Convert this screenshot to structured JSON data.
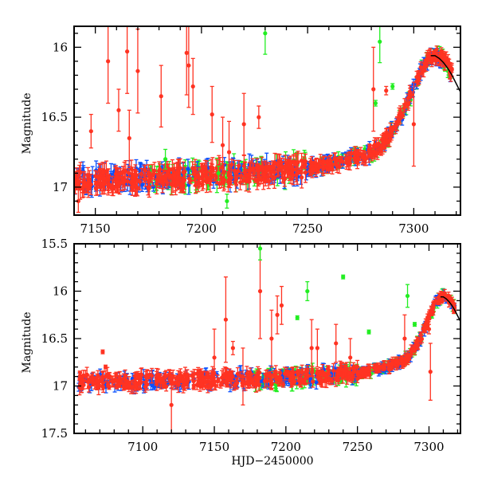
{
  "chart_data": [
    {
      "type": "scatter",
      "panel": "top",
      "title": "",
      "xlabel": "",
      "ylabel": "Magnitude",
      "xlim": [
        7140,
        7322
      ],
      "ylim": [
        17.2,
        15.85
      ],
      "y_inverted": true,
      "grid": false,
      "legend": "none",
      "x_ticks": [
        7150,
        7200,
        7250,
        7300
      ],
      "x_tick_labels": [
        "7150",
        "7200",
        "7250",
        "7300"
      ],
      "y_ticks": [
        16,
        16.5,
        17
      ],
      "y_tick_labels": [
        "16",
        "16.5",
        "17"
      ],
      "series": [
        {
          "name": "red",
          "color": "#ff3322"
        },
        {
          "name": "blue",
          "color": "#0a50ff"
        },
        {
          "name": "green",
          "color": "#22ee22"
        },
        {
          "name": "model-curve",
          "color": "#000000"
        }
      ],
      "trend": {
        "x": [
          7140,
          7160,
          7180,
          7200,
          7220,
          7240,
          7250,
          7260,
          7270,
          7280,
          7285,
          7290,
          7295,
          7300,
          7304,
          7307,
          7310,
          7313,
          7316,
          7319,
          7322
        ],
        "y": [
          16.95,
          16.94,
          16.93,
          16.92,
          16.9,
          16.88,
          16.86,
          16.84,
          16.8,
          16.75,
          16.7,
          16.6,
          16.47,
          16.28,
          16.15,
          16.08,
          16.05,
          16.07,
          16.13,
          16.22,
          16.32
        ]
      },
      "model_curve": {
        "x": [
          7308,
          7310,
          7312,
          7314,
          7316,
          7318,
          7320,
          7322
        ],
        "y": [
          16.06,
          16.06,
          16.08,
          16.11,
          16.15,
          16.2,
          16.26,
          16.32
        ]
      },
      "outliers": [
        {
          "series": "red",
          "x": [
            7142,
            7148,
            7156,
            7161,
            7165,
            7166,
            7170,
            7181,
            7193,
            7194,
            7196,
            7205,
            7210,
            7213,
            7220,
            7227,
            7281,
            7300,
            7287
          ],
          "y": [
            17.1,
            16.6,
            16.1,
            16.45,
            16.03,
            16.65,
            16.17,
            16.35,
            16.04,
            16.13,
            16.28,
            16.48,
            16.7,
            16.75,
            16.55,
            16.5,
            16.3,
            16.55,
            16.31
          ],
          "err": [
            0.08,
            0.12,
            0.3,
            0.15,
            0.3,
            0.2,
            0.3,
            0.22,
            0.3,
            0.3,
            0.2,
            0.2,
            0.2,
            0.22,
            0.22,
            0.08,
            0.3,
            0.3,
            0.03
          ]
        },
        {
          "series": "green",
          "x": [
            7183,
            7208,
            7212,
            7230,
            7284,
            7290,
            7282
          ],
          "y": [
            16.8,
            16.9,
            17.1,
            15.9,
            15.96,
            16.28,
            16.4
          ],
          "err": [
            0.07,
            0.05,
            0.05,
            0.15,
            0.15,
            0.02,
            0.02
          ]
        }
      ]
    },
    {
      "type": "scatter",
      "panel": "bottom",
      "title": "",
      "xlabel": "HJD−2450000",
      "ylabel": "Magnitude",
      "xlim": [
        7052,
        7322
      ],
      "ylim": [
        17.5,
        15.5
      ],
      "y_inverted": true,
      "grid": false,
      "legend": "none",
      "x_ticks": [
        7100,
        7150,
        7200,
        7250,
        7300
      ],
      "x_tick_labels": [
        "7100",
        "7150",
        "7200",
        "7250",
        "7300"
      ],
      "y_ticks": [
        15.5,
        16,
        16.5,
        17,
        17.5
      ],
      "y_tick_labels": [
        "15.5",
        "16",
        "16.5",
        "17",
        "17.5"
      ],
      "series": [
        {
          "name": "red",
          "color": "#ff3322"
        },
        {
          "name": "blue",
          "color": "#0a50ff"
        },
        {
          "name": "green",
          "color": "#22ee22"
        },
        {
          "name": "model-curve",
          "color": "#000000"
        }
      ],
      "trend": {
        "x": [
          7055,
          7080,
          7100,
          7130,
          7160,
          7190,
          7220,
          7240,
          7250,
          7260,
          7270,
          7280,
          7285,
          7290,
          7295,
          7300,
          7304,
          7307,
          7310,
          7313,
          7316,
          7319,
          7322
        ],
        "y": [
          16.95,
          16.95,
          16.95,
          16.94,
          16.93,
          16.92,
          16.9,
          16.88,
          16.86,
          16.84,
          16.8,
          16.75,
          16.7,
          16.6,
          16.47,
          16.28,
          16.15,
          16.08,
          16.05,
          16.07,
          16.13,
          16.22,
          16.32
        ]
      },
      "model_curve": {
        "x": [
          7308,
          7310,
          7312,
          7314,
          7316,
          7318,
          7320,
          7322
        ],
        "y": [
          16.06,
          16.06,
          16.08,
          16.11,
          16.15,
          16.2,
          16.26,
          16.32
        ]
      },
      "outliers": [
        {
          "series": "red",
          "x": [
            7072,
            7074,
            7120,
            7150,
            7158,
            7163,
            7170,
            7182,
            7190,
            7194,
            7197,
            7218,
            7222,
            7235,
            7245,
            7283,
            7300,
            7301
          ],
          "y": [
            16.64,
            16.8,
            17.2,
            16.7,
            16.3,
            16.6,
            16.9,
            16.0,
            16.5,
            16.25,
            16.15,
            16.6,
            16.6,
            16.55,
            16.7,
            16.5,
            16.4,
            16.85
          ],
          "err": [
            0.02,
            0.02,
            0.3,
            0.3,
            0.45,
            0.07,
            0.3,
            0.5,
            0.3,
            0.2,
            0.2,
            0.3,
            0.2,
            0.2,
            0.2,
            0.25,
            0.05,
            0.3
          ]
        },
        {
          "series": "green",
          "x": [
            7182,
            7208,
            7215,
            7240,
            7258,
            7285,
            7290
          ],
          "y": [
            15.55,
            16.28,
            16.0,
            15.85,
            16.43,
            16.05,
            16.35
          ],
          "err": [
            0.12,
            0.02,
            0.1,
            0.02,
            0.02,
            0.12,
            0.02
          ]
        }
      ]
    }
  ]
}
